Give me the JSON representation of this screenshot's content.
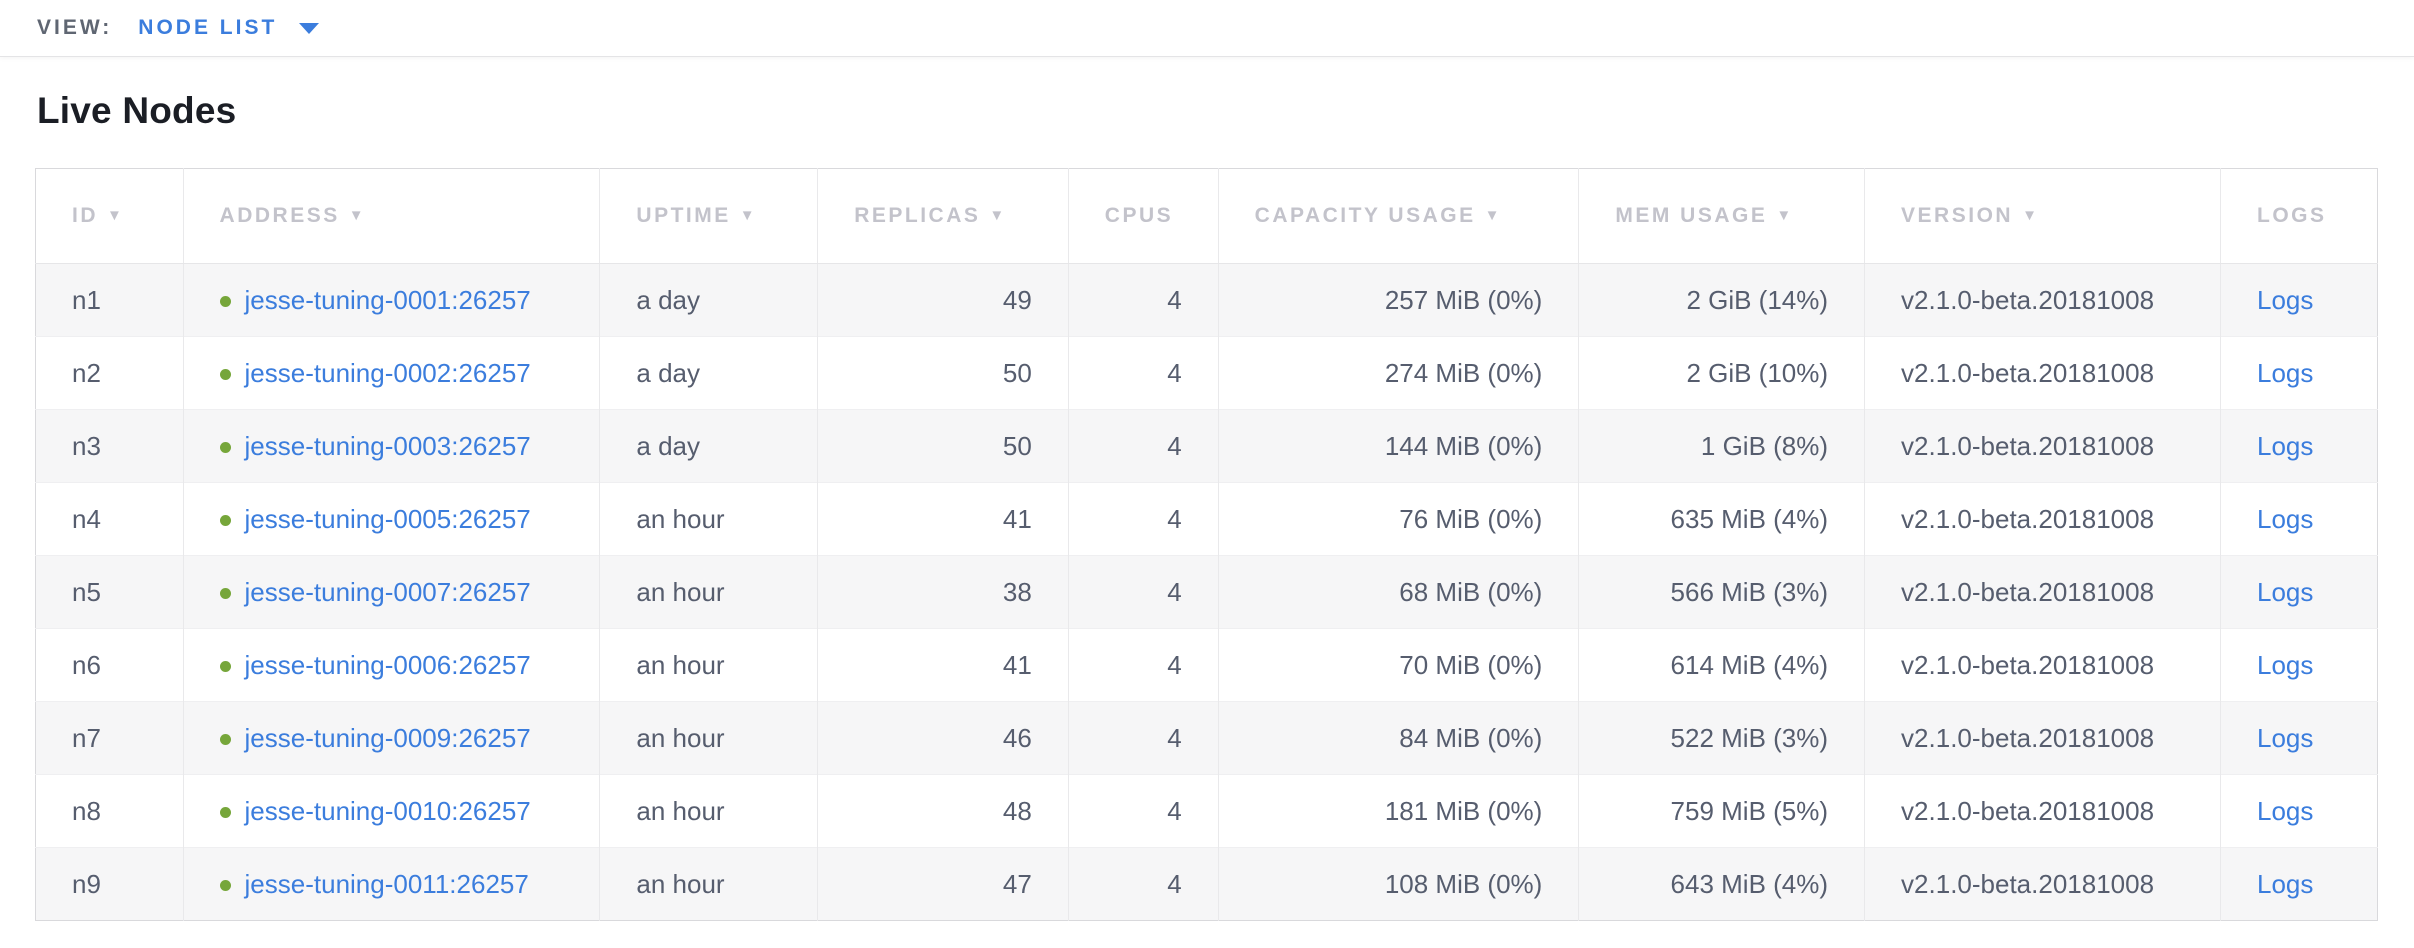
{
  "view_bar": {
    "label": "VIEW:",
    "selected_view": "NODE LIST"
  },
  "page": {
    "title": "Live Nodes"
  },
  "table": {
    "columns": [
      {
        "label": "ID",
        "sortable": true
      },
      {
        "label": "ADDRESS",
        "sortable": true
      },
      {
        "label": "UPTIME",
        "sortable": true
      },
      {
        "label": "REPLICAS",
        "sortable": true
      },
      {
        "label": "CPUS",
        "sortable": false
      },
      {
        "label": "CAPACITY USAGE",
        "sortable": true
      },
      {
        "label": "MEM USAGE",
        "sortable": true
      },
      {
        "label": "VERSION",
        "sortable": true
      },
      {
        "label": "LOGS",
        "sortable": false
      }
    ],
    "rows": [
      {
        "id": "n1",
        "address": "jesse-tuning-0001:26257",
        "uptime": "a day",
        "replicas": "49",
        "cpus": "4",
        "capacity": "257 MiB (0%)",
        "mem": "2 GiB (14%)",
        "version": "v2.1.0-beta.20181008",
        "logs": "Logs",
        "status": "live"
      },
      {
        "id": "n2",
        "address": "jesse-tuning-0002:26257",
        "uptime": "a day",
        "replicas": "50",
        "cpus": "4",
        "capacity": "274 MiB (0%)",
        "mem": "2 GiB (10%)",
        "version": "v2.1.0-beta.20181008",
        "logs": "Logs",
        "status": "live"
      },
      {
        "id": "n3",
        "address": "jesse-tuning-0003:26257",
        "uptime": "a day",
        "replicas": "50",
        "cpus": "4",
        "capacity": "144 MiB (0%)",
        "mem": "1 GiB (8%)",
        "version": "v2.1.0-beta.20181008",
        "logs": "Logs",
        "status": "live"
      },
      {
        "id": "n4",
        "address": "jesse-tuning-0005:26257",
        "uptime": "an hour",
        "replicas": "41",
        "cpus": "4",
        "capacity": "76 MiB (0%)",
        "mem": "635 MiB (4%)",
        "version": "v2.1.0-beta.20181008",
        "logs": "Logs",
        "status": "live"
      },
      {
        "id": "n5",
        "address": "jesse-tuning-0007:26257",
        "uptime": "an hour",
        "replicas": "38",
        "cpus": "4",
        "capacity": "68 MiB (0%)",
        "mem": "566 MiB (3%)",
        "version": "v2.1.0-beta.20181008",
        "logs": "Logs",
        "status": "live"
      },
      {
        "id": "n6",
        "address": "jesse-tuning-0006:26257",
        "uptime": "an hour",
        "replicas": "41",
        "cpus": "4",
        "capacity": "70 MiB (0%)",
        "mem": "614 MiB (4%)",
        "version": "v2.1.0-beta.20181008",
        "logs": "Logs",
        "status": "live"
      },
      {
        "id": "n7",
        "address": "jesse-tuning-0009:26257",
        "uptime": "an hour",
        "replicas": "46",
        "cpus": "4",
        "capacity": "84 MiB (0%)",
        "mem": "522 MiB (3%)",
        "version": "v2.1.0-beta.20181008",
        "logs": "Logs",
        "status": "live"
      },
      {
        "id": "n8",
        "address": "jesse-tuning-0010:26257",
        "uptime": "an hour",
        "replicas": "48",
        "cpus": "4",
        "capacity": "181 MiB (0%)",
        "mem": "759 MiB (5%)",
        "version": "v2.1.0-beta.20181008",
        "logs": "Logs",
        "status": "live"
      },
      {
        "id": "n9",
        "address": "jesse-tuning-0011:26257",
        "uptime": "an hour",
        "replicas": "47",
        "cpus": "4",
        "capacity": "108 MiB (0%)",
        "mem": "643 MiB (4%)",
        "version": "v2.1.0-beta.20181008",
        "logs": "Logs",
        "status": "live"
      }
    ]
  },
  "colors": {
    "link_blue": "#3b7ddd",
    "live_dot_green": "#76a63a",
    "header_gray": "#c3c3cb",
    "cell_text": "#565d6e",
    "zebra_stripe": "#f6f6f7"
  }
}
